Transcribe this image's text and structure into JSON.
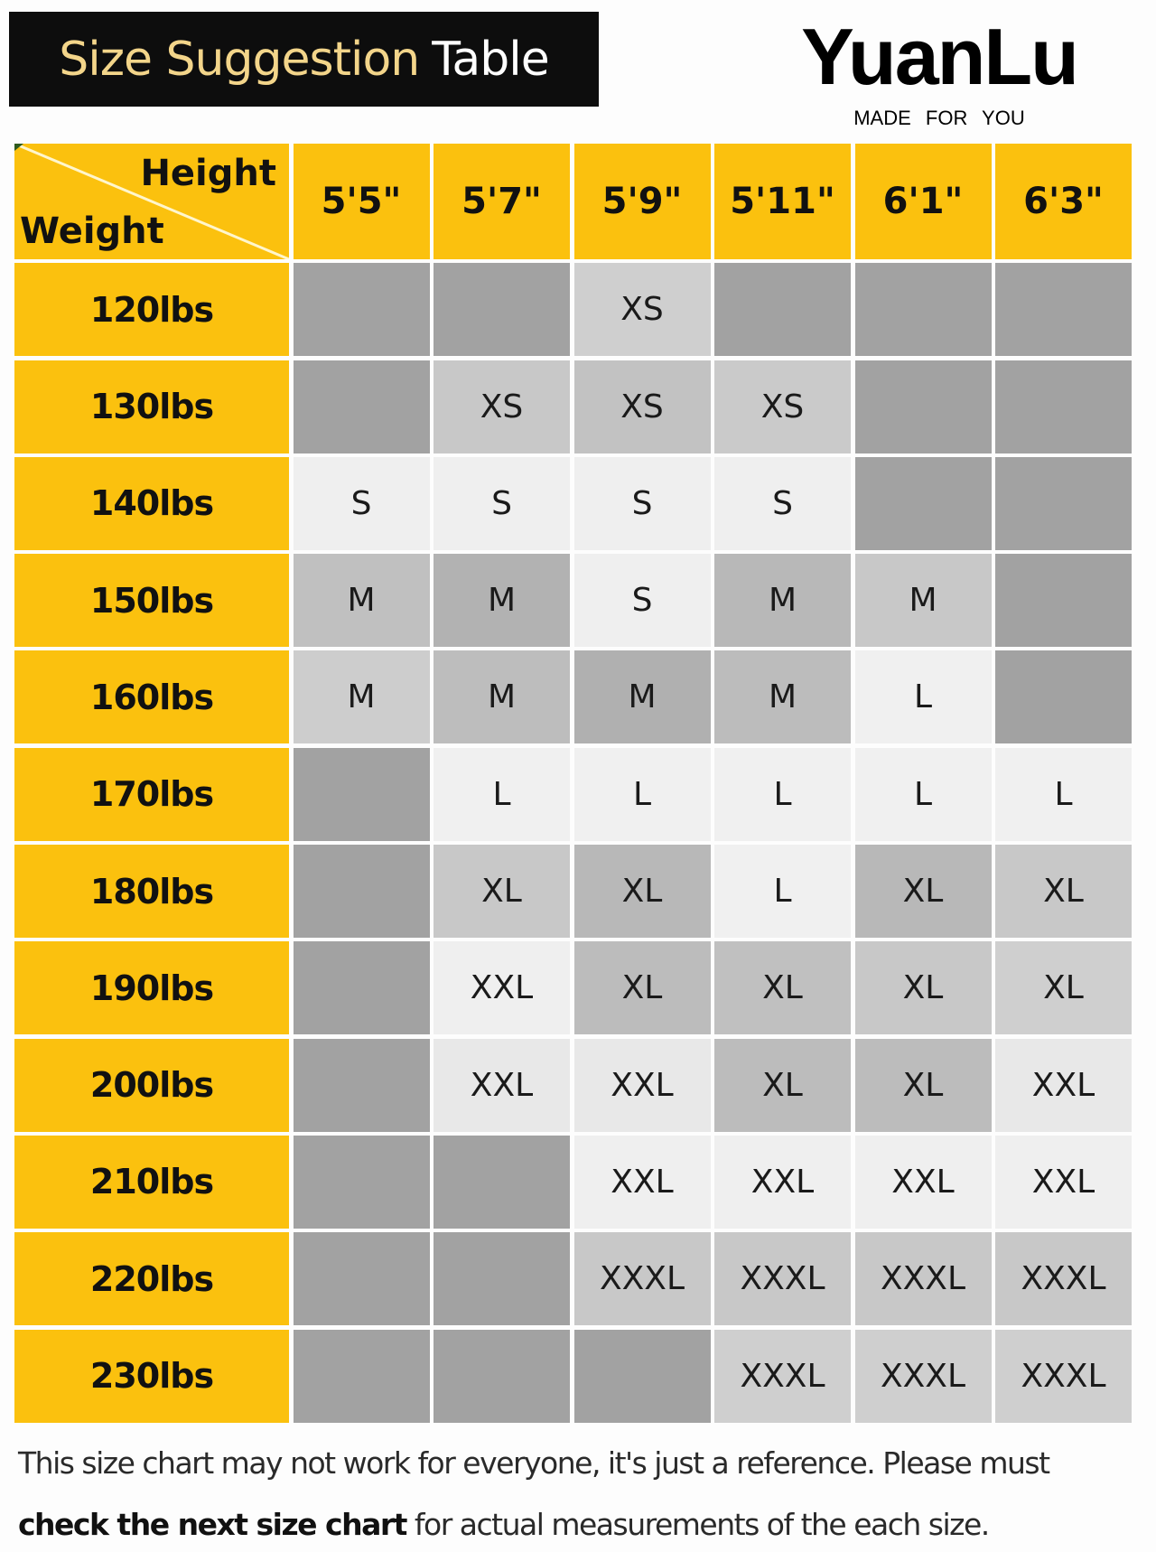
{
  "header": {
    "title_part1": "Size Suggestion",
    "title_part2": "Table",
    "brand": "YuanLu",
    "tagline": "MADE FOR YOU"
  },
  "colors": {
    "header_yellow": "#fbc10e",
    "title_bg": "#0d0d0d",
    "title_gold": "#f3d58a"
  },
  "table": {
    "corner_top": "Height",
    "corner_bottom": "Weight",
    "heights": [
      "5'5\"",
      "5'7\"",
      "5'9\"",
      "5'11\"",
      "6'1\"",
      "6'3\""
    ],
    "rows": [
      {
        "weight": "120lbs",
        "sizes": [
          "",
          "",
          "XS",
          "",
          "",
          ""
        ],
        "shades": [
          "#a2a2a2",
          "#a2a2a2",
          "#cfcfcf",
          "#a2a2a2",
          "#a2a2a2",
          "#a2a2a2"
        ]
      },
      {
        "weight": "130lbs",
        "sizes": [
          "",
          "XS",
          "XS",
          "XS",
          "",
          ""
        ],
        "shades": [
          "#a2a2a2",
          "#c8c8c8",
          "#c2c2c2",
          "#cacaca",
          "#a2a2a2",
          "#a2a2a2"
        ]
      },
      {
        "weight": "140lbs",
        "sizes": [
          "S",
          "S",
          "S",
          "S",
          "",
          ""
        ],
        "shades": [
          "#efefef",
          "#efefef",
          "#efefef",
          "#efefef",
          "#a2a2a2",
          "#a2a2a2"
        ]
      },
      {
        "weight": "150lbs",
        "sizes": [
          "M",
          "M",
          "S",
          "M",
          "M",
          ""
        ],
        "shades": [
          "#c0c0c0",
          "#b2b2b2",
          "#efefef",
          "#b8b8b8",
          "#c8c8c8",
          "#a2a2a2"
        ]
      },
      {
        "weight": "160lbs",
        "sizes": [
          "M",
          "M",
          "M",
          "M",
          "L",
          ""
        ],
        "shades": [
          "#cdcdcd",
          "#bdbdbd",
          "#b0b0b0",
          "#bcbcbc",
          "#f0f0f0",
          "#a2a2a2"
        ]
      },
      {
        "weight": "170lbs",
        "sizes": [
          "",
          "L",
          "L",
          "L",
          "L",
          "L"
        ],
        "shades": [
          "#a2a2a2",
          "#f0f0f0",
          "#f0f0f0",
          "#f0f0f0",
          "#f0f0f0",
          "#f0f0f0"
        ]
      },
      {
        "weight": "180lbs",
        "sizes": [
          "",
          "XL",
          "XL",
          "L",
          "XL",
          "XL"
        ],
        "shades": [
          "#a2a2a2",
          "#c8c8c8",
          "#b8b8b8",
          "#f0f0f0",
          "#b8b8b8",
          "#c8c8c8"
        ]
      },
      {
        "weight": "190lbs",
        "sizes": [
          "",
          "XXL",
          "XL",
          "XL",
          "XL",
          "XL"
        ],
        "shades": [
          "#a2a2a2",
          "#efefef",
          "#bcbcbc",
          "#c0c0c0",
          "#c8c8c8",
          "#cfcfcf"
        ]
      },
      {
        "weight": "200lbs",
        "sizes": [
          "",
          "XXL",
          "XXL",
          "XL",
          "XL",
          "XXL"
        ],
        "shades": [
          "#a2a2a2",
          "#e8e8e8",
          "#e8e8e8",
          "#bcbcbc",
          "#bcbcbc",
          "#e8e8e8"
        ]
      },
      {
        "weight": "210lbs",
        "sizes": [
          "",
          "",
          "XXL",
          "XXL",
          "XXL",
          "XXL"
        ],
        "shades": [
          "#a2a2a2",
          "#a2a2a2",
          "#efefef",
          "#efefef",
          "#efefef",
          "#efefef"
        ]
      },
      {
        "weight": "220lbs",
        "sizes": [
          "",
          "",
          "XXXL",
          "XXXL",
          "XXXL",
          "XXXL"
        ],
        "shades": [
          "#a2a2a2",
          "#a2a2a2",
          "#c8c8c8",
          "#c8c8c8",
          "#c8c8c8",
          "#c8c8c8"
        ]
      },
      {
        "weight": "230lbs",
        "sizes": [
          "",
          "",
          "",
          "XXXL",
          "XXXL",
          "XXXL"
        ],
        "shades": [
          "#a2a2a2",
          "#a2a2a2",
          "#a2a2a2",
          "#cfcfcf",
          "#cfcfcf",
          "#cfcfcf"
        ]
      }
    ]
  },
  "footer": {
    "line1": "This size chart may not work for everyone, it's just a reference. Please must",
    "line2_bold": "check the next size chart",
    "line2_rest": " for actual measurements of the each size."
  }
}
